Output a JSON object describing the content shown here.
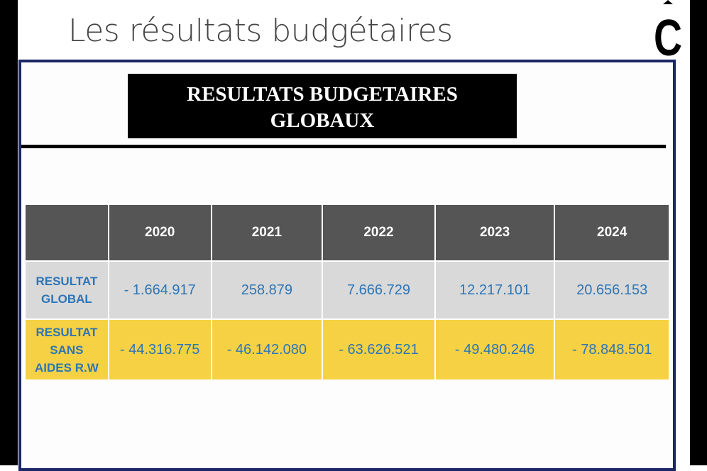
{
  "slide_title": "Les résultats budgétaires",
  "logo_letter": "C",
  "banner": {
    "line1": "RESULTATS BUDGETAIRES",
    "line2": "GLOBAUX"
  },
  "table": {
    "headers": [
      "",
      "2020",
      "2021",
      "2022",
      "2023",
      "2024"
    ],
    "rows": [
      {
        "label_lines": [
          "RESULTAT",
          "GLOBAL"
        ],
        "values": [
          "- 1.664.917",
          "258.879",
          "7.666.729",
          "12.217.101",
          "20.656.153"
        ]
      },
      {
        "label_lines": [
          "RESULTAT",
          "SANS",
          "AIDES R.W"
        ],
        "values": [
          "- 44.316.775",
          "- 46.142.080",
          "- 63.626.521",
          "- 49.480.246",
          "- 78.848.501"
        ]
      }
    ]
  },
  "colors": {
    "frame": "#1b2766",
    "header": "#555555",
    "row1": "#d9d9d9",
    "row2": "#f6d143",
    "text": "#2e75b6"
  }
}
